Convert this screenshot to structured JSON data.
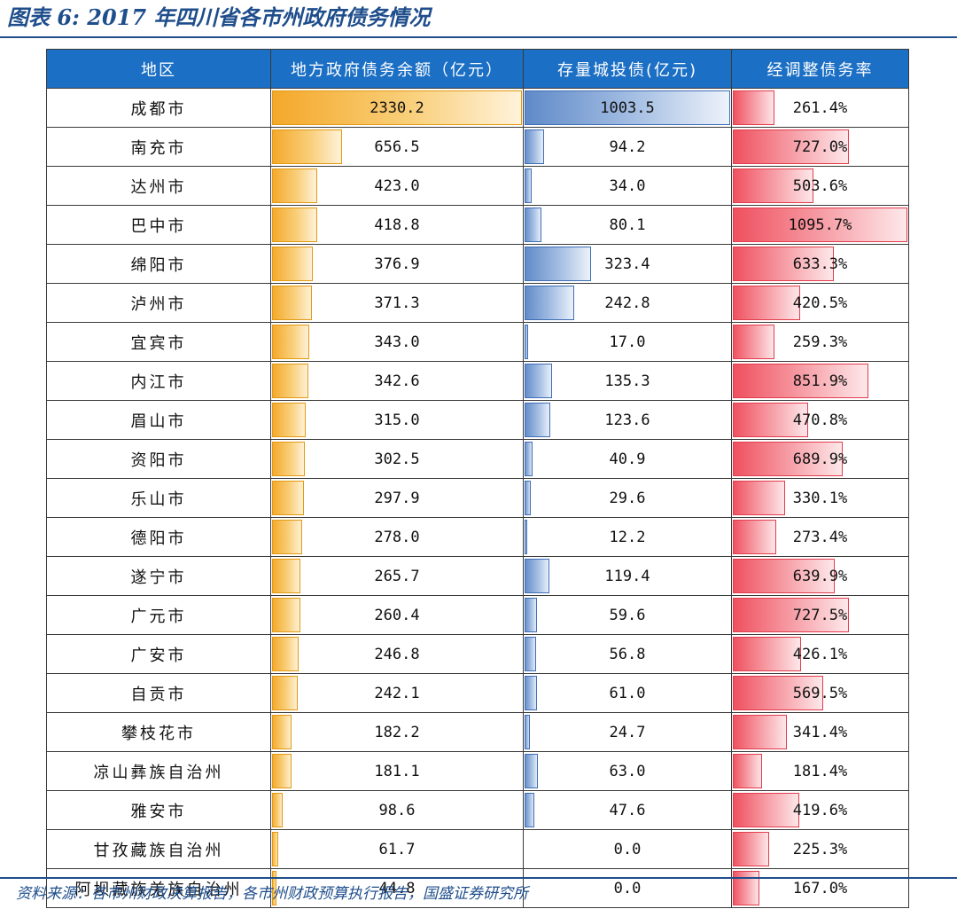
{
  "figure": {
    "title": "图表 6: 2017 年四川省各市州政府债务情况",
    "source": "资料来源：各市州财政决算报告，各市州财政预算执行报告，国盛证券研究所"
  },
  "chart_data": {
    "type": "table",
    "title": "图表 6: 2017 年四川省各市州政府债务情况",
    "columns": [
      "地区",
      "地方政府债务余额（亿元）",
      "存量城投债(亿元)",
      "经调整债务率"
    ],
    "colors": {
      "header": "#1b6fc4",
      "debt_bar": "#f4a82a",
      "bond_bar": "#5f8ac8",
      "ratio_bar": "#ef4f5e",
      "title": "#1f4e8c"
    },
    "rows": [
      {
        "region": "成都市",
        "debt": "2330.2",
        "bond": "1003.5",
        "ratio": "261.4%",
        "debt_v": 2330.2,
        "bond_v": 1003.5,
        "ratio_v": 261.4
      },
      {
        "region": "南充市",
        "debt": "656.5",
        "bond": "94.2",
        "ratio": "727.0%",
        "debt_v": 656.5,
        "bond_v": 94.2,
        "ratio_v": 727.0
      },
      {
        "region": "达州市",
        "debt": "423.0",
        "bond": "34.0",
        "ratio": "503.6%",
        "debt_v": 423.0,
        "bond_v": 34.0,
        "ratio_v": 503.6
      },
      {
        "region": "巴中市",
        "debt": "418.8",
        "bond": "80.1",
        "ratio": "1095.7%",
        "debt_v": 418.8,
        "bond_v": 80.1,
        "ratio_v": 1095.7
      },
      {
        "region": "绵阳市",
        "debt": "376.9",
        "bond": "323.4",
        "ratio": "633.3%",
        "debt_v": 376.9,
        "bond_v": 323.4,
        "ratio_v": 633.3
      },
      {
        "region": "泸州市",
        "debt": "371.3",
        "bond": "242.8",
        "ratio": "420.5%",
        "debt_v": 371.3,
        "bond_v": 242.8,
        "ratio_v": 420.5
      },
      {
        "region": "宜宾市",
        "debt": "343.0",
        "bond": "17.0",
        "ratio": "259.3%",
        "debt_v": 343.0,
        "bond_v": 17.0,
        "ratio_v": 259.3
      },
      {
        "region": "内江市",
        "debt": "342.6",
        "bond": "135.3",
        "ratio": "851.9%",
        "debt_v": 342.6,
        "bond_v": 135.3,
        "ratio_v": 851.9
      },
      {
        "region": "眉山市",
        "debt": "315.0",
        "bond": "123.6",
        "ratio": "470.8%",
        "debt_v": 315.0,
        "bond_v": 123.6,
        "ratio_v": 470.8
      },
      {
        "region": "资阳市",
        "debt": "302.5",
        "bond": "40.9",
        "ratio": "689.9%",
        "debt_v": 302.5,
        "bond_v": 40.9,
        "ratio_v": 689.9
      },
      {
        "region": "乐山市",
        "debt": "297.9",
        "bond": "29.6",
        "ratio": "330.1%",
        "debt_v": 297.9,
        "bond_v": 29.6,
        "ratio_v": 330.1
      },
      {
        "region": "德阳市",
        "debt": "278.0",
        "bond": "12.2",
        "ratio": "273.4%",
        "debt_v": 278.0,
        "bond_v": 12.2,
        "ratio_v": 273.4
      },
      {
        "region": "遂宁市",
        "debt": "265.7",
        "bond": "119.4",
        "ratio": "639.9%",
        "debt_v": 265.7,
        "bond_v": 119.4,
        "ratio_v": 639.9
      },
      {
        "region": "广元市",
        "debt": "260.4",
        "bond": "59.6",
        "ratio": "727.5%",
        "debt_v": 260.4,
        "bond_v": 59.6,
        "ratio_v": 727.5
      },
      {
        "region": "广安市",
        "debt": "246.8",
        "bond": "56.8",
        "ratio": "426.1%",
        "debt_v": 246.8,
        "bond_v": 56.8,
        "ratio_v": 426.1
      },
      {
        "region": "自贡市",
        "debt": "242.1",
        "bond": "61.0",
        "ratio": "569.5%",
        "debt_v": 242.1,
        "bond_v": 61.0,
        "ratio_v": 569.5
      },
      {
        "region": "攀枝花市",
        "debt": "182.2",
        "bond": "24.7",
        "ratio": "341.4%",
        "debt_v": 182.2,
        "bond_v": 24.7,
        "ratio_v": 341.4
      },
      {
        "region": "凉山彝族自治州",
        "debt": "181.1",
        "bond": "63.0",
        "ratio": "181.4%",
        "debt_v": 181.1,
        "bond_v": 63.0,
        "ratio_v": 181.4
      },
      {
        "region": "雅安市",
        "debt": "98.6",
        "bond": "47.6",
        "ratio": "419.6%",
        "debt_v": 98.6,
        "bond_v": 47.6,
        "ratio_v": 419.6
      },
      {
        "region": "甘孜藏族自治州",
        "debt": "61.7",
        "bond": "0.0",
        "ratio": "225.3%",
        "debt_v": 61.7,
        "bond_v": 0.0,
        "ratio_v": 225.3
      },
      {
        "region": "阿坝藏族羌族自治州",
        "debt": "44.8",
        "bond": "0.0",
        "ratio": "167.0%",
        "debt_v": 44.8,
        "bond_v": 0.0,
        "ratio_v": 167.0
      }
    ]
  }
}
